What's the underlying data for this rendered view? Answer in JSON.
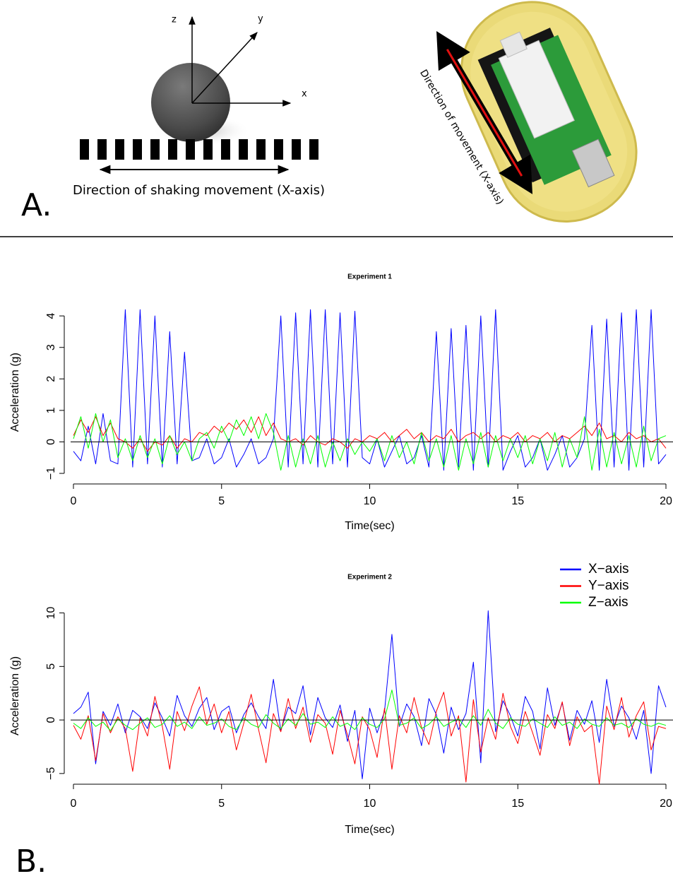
{
  "panel_a": {
    "label": "A.",
    "axis_labels": {
      "z": "z",
      "y": "y",
      "x": "x"
    },
    "shaking_caption": "Direction of shaking movement (X-axis)",
    "device_caption": "Direction of movement (X-axis)"
  },
  "panel_b": {
    "label": "B."
  },
  "chart_data": [
    {
      "type": "line",
      "title": "Experiment 1",
      "x_label": "Time(sec)",
      "y_label": "Acceleration (g)",
      "x": [
        0,
        0.25,
        0.5,
        0.75,
        1,
        1.25,
        1.5,
        1.75,
        2,
        2.25,
        2.5,
        2.75,
        3,
        3.25,
        3.5,
        3.75,
        4,
        4.25,
        4.5,
        4.75,
        5,
        5.25,
        5.5,
        5.75,
        6,
        6.25,
        6.5,
        6.75,
        7,
        7.25,
        7.5,
        7.75,
        8,
        8.25,
        8.5,
        8.75,
        9,
        9.25,
        9.5,
        9.75,
        10,
        10.25,
        10.5,
        10.75,
        11,
        11.25,
        11.5,
        11.75,
        12,
        12.25,
        12.5,
        12.75,
        13,
        13.25,
        13.5,
        13.75,
        14,
        14.25,
        14.5,
        14.75,
        15,
        15.25,
        15.5,
        15.75,
        16,
        16.25,
        16.5,
        16.75,
        17,
        17.25,
        17.5,
        17.75,
        18,
        18.25,
        18.5,
        18.75,
        19,
        19.25,
        19.5,
        19.75,
        20
      ],
      "series": [
        {
          "color": "#0000ff",
          "values": [
            -0.3,
            -0.6,
            0.5,
            -0.7,
            0.9,
            -0.6,
            -0.7,
            4.2,
            -0.8,
            4.2,
            -0.7,
            4.0,
            -0.8,
            3.5,
            -0.7,
            2.85,
            -0.6,
            -0.5,
            0.1,
            -0.7,
            -0.5,
            0.1,
            -0.8,
            -0.4,
            0.1,
            -0.7,
            -0.5,
            0.1,
            4.0,
            -0.8,
            4.1,
            -0.7,
            4.2,
            -0.8,
            4.2,
            -0.7,
            4.1,
            -0.8,
            4.15,
            -0.5,
            -0.7,
            0.1,
            -0.8,
            -0.3,
            0.2,
            -0.7,
            -0.5,
            0.2,
            -0.8,
            3.5,
            -0.9,
            3.6,
            -0.8,
            3.7,
            -0.9,
            4.0,
            -0.8,
            4.2,
            -0.9,
            -0.3,
            0.2,
            -0.8,
            -0.5,
            0.1,
            -0.9,
            -0.4,
            0.2,
            -0.8,
            -0.5,
            0.1,
            3.7,
            -0.9,
            3.9,
            -0.8,
            4.1,
            -0.9,
            4.2,
            -0.8,
            4.2,
            -0.7,
            -0.4
          ]
        },
        {
          "color": "#ff0000",
          "values": [
            0.2,
            0.7,
            0.3,
            0.8,
            0.2,
            0.6,
            0.1,
            0.0,
            -0.2,
            0.1,
            -0.3,
            0.0,
            -0.1,
            0.2,
            -0.2,
            0.1,
            0.0,
            0.3,
            0.2,
            0.5,
            0.3,
            0.6,
            0.4,
            0.7,
            0.3,
            0.8,
            0.2,
            0.6,
            0.1,
            0.0,
            0.1,
            -0.1,
            0.2,
            0.0,
            -0.1,
            0.1,
            0.0,
            -0.2,
            0.1,
            0.0,
            0.2,
            0.1,
            0.3,
            0.0,
            0.2,
            0.4,
            0.1,
            0.3,
            0.0,
            0.2,
            0.1,
            0.4,
            0.0,
            0.2,
            0.3,
            0.1,
            0.3,
            0.0,
            0.2,
            0.1,
            0.3,
            0.0,
            0.2,
            0.1,
            0.3,
            0.0,
            0.2,
            0.1,
            0.3,
            0.5,
            0.2,
            0.6,
            0.1,
            0.2,
            0.0,
            0.3,
            0.1,
            0.2,
            0.0,
            0.1,
            -0.2
          ]
        },
        {
          "color": "#00ff00",
          "values": [
            0.1,
            0.8,
            -0.2,
            0.9,
            0.0,
            0.7,
            -0.5,
            0.1,
            -0.6,
            0.2,
            -0.5,
            0.1,
            -0.7,
            0.2,
            -0.4,
            0.0,
            -0.6,
            0.1,
            0.3,
            -0.2,
            0.5,
            0.0,
            0.7,
            0.2,
            0.8,
            0.1,
            0.9,
            0.3,
            -0.9,
            0.2,
            -0.8,
            0.1,
            -0.7,
            0.2,
            -0.8,
            0.0,
            -0.6,
            0.1,
            -0.4,
            0.0,
            -0.3,
            0.1,
            -0.6,
            0.2,
            -0.5,
            0.0,
            -0.7,
            0.3,
            -0.6,
            0.1,
            -0.8,
            0.2,
            -0.9,
            0.1,
            -0.7,
            0.3,
            -0.8,
            0.2,
            -0.6,
            0.1,
            -0.5,
            0.2,
            -0.7,
            0.1,
            -0.6,
            0.3,
            -0.8,
            0.1,
            -0.5,
            0.8,
            -0.9,
            0.4,
            -0.8,
            0.3,
            -0.7,
            0.2,
            -0.8,
            0.5,
            -0.6,
            0.1,
            0.2
          ]
        }
      ],
      "xlim": [
        0,
        20
      ],
      "ylim": [
        -1.1,
        4.25
      ],
      "xticks": [
        0,
        5,
        10,
        15,
        20
      ],
      "yticks": [
        {
          "value": -1,
          "label": "−1"
        },
        0,
        1,
        2,
        3,
        4
      ]
    },
    {
      "type": "line",
      "title": "Experiment 2",
      "x_label": "Time(sec)",
      "y_label": "Acceleration (g)",
      "x": [
        0,
        0.25,
        0.5,
        0.75,
        1,
        1.25,
        1.5,
        1.75,
        2,
        2.25,
        2.5,
        2.75,
        3,
        3.25,
        3.5,
        3.75,
        4,
        4.25,
        4.5,
        4.75,
        5,
        5.25,
        5.5,
        5.75,
        6,
        6.25,
        6.5,
        6.75,
        7,
        7.25,
        7.5,
        7.75,
        8,
        8.25,
        8.5,
        8.75,
        9,
        9.25,
        9.5,
        9.75,
        10,
        10.25,
        10.5,
        10.75,
        11,
        11.25,
        11.5,
        11.75,
        12,
        12.25,
        12.5,
        12.75,
        13,
        13.25,
        13.5,
        13.75,
        14,
        14.25,
        14.5,
        14.75,
        15,
        15.25,
        15.5,
        15.75,
        16,
        16.25,
        16.5,
        16.75,
        17,
        17.25,
        17.5,
        17.75,
        18,
        18.25,
        18.5,
        18.75,
        19,
        19.25,
        19.5,
        19.75,
        20
      ],
      "series": [
        {
          "name": "X−axis",
          "color": "#0000ff",
          "values": [
            0.6,
            1.2,
            2.6,
            -4.1,
            0.8,
            -0.5,
            1.5,
            -1.2,
            0.9,
            0.3,
            -0.8,
            1.6,
            0.2,
            -1.5,
            2.3,
            0.4,
            -0.6,
            1.1,
            2.1,
            -0.9,
            0.8,
            1.3,
            -1.2,
            0.5,
            1.6,
            0.3,
            -0.8,
            3.8,
            -1.0,
            1.2,
            0.6,
            3.2,
            -1.4,
            2.1,
            0.2,
            -0.7,
            1.4,
            -2.0,
            0.9,
            -5.5,
            1.1,
            -1.2,
            0.8,
            8.0,
            -0.6,
            1.5,
            0.3,
            -2.4,
            2.0,
            0.5,
            -3.1,
            1.2,
            -0.9,
            0.6,
            5.4,
            -4.0,
            10.2,
            -1.1,
            1.8,
            0.4,
            -1.5,
            2.2,
            0.8,
            -2.7,
            3.0,
            -0.5,
            1.6,
            -1.9,
            0.9,
            -0.4,
            1.8,
            -2.1,
            3.8,
            -0.6,
            1.3,
            0.2,
            -1.8,
            0.9,
            -5.0,
            3.2,
            1.2
          ]
        },
        {
          "name": "Y−axis",
          "color": "#ff0000",
          "values": [
            -0.5,
            -1.8,
            0.4,
            -3.8,
            0.6,
            -1.2,
            0.3,
            -0.8,
            -4.8,
            0.2,
            -1.5,
            2.2,
            -0.6,
            -4.6,
            0.8,
            -1.0,
            1.3,
            3.1,
            -0.4,
            1.5,
            -1.2,
            0.8,
            -2.8,
            -0.3,
            2.4,
            -0.9,
            -4.0,
            0.6,
            -1.1,
            2.0,
            -0.8,
            1.2,
            -2.1,
            0.5,
            -0.3,
            -3.2,
            0.9,
            -1.4,
            -4.1,
            0.3,
            -0.9,
            -3.5,
            1.1,
            -4.6,
            0.4,
            -1.2,
            2.1,
            -0.7,
            -2.3,
            0.8,
            2.6,
            -1.5,
            0.4,
            -5.8,
            1.9,
            -3.0,
            0.2,
            -1.8,
            2.5,
            -0.6,
            -2.2,
            0.8,
            -1.2,
            -3.3,
            0.5,
            -0.8,
            1.7,
            -2.4,
            0.3,
            -1.1,
            -0.5,
            -6.0,
            1.3,
            -0.9,
            2.1,
            -1.6,
            0.4,
            1.7,
            -2.8,
            -0.6,
            -0.8
          ]
        },
        {
          "name": "Z−axis",
          "color": "#00ff00",
          "values": [
            -0.3,
            -0.8,
            0.2,
            -0.6,
            -0.2,
            -1.0,
            0.1,
            -0.5,
            -0.9,
            -0.3,
            0.2,
            -0.7,
            -0.4,
            0.4,
            -0.6,
            -0.2,
            -0.8,
            0.3,
            -0.5,
            -0.3,
            0.1,
            -0.6,
            -0.9,
            0.2,
            -0.4,
            -0.7,
            0.5,
            -0.3,
            -0.8,
            0.1,
            -0.5,
            0.6,
            -0.4,
            -0.2,
            -0.7,
            0.3,
            -0.6,
            -0.3,
            -0.9,
            0.2,
            -0.4,
            -0.7,
            0.1,
            2.8,
            -0.5,
            -0.3,
            0.2,
            -0.8,
            -0.4,
            0.3,
            -0.6,
            -0.2,
            0.1,
            -0.7,
            0.4,
            -0.5,
            1.0,
            -0.3,
            -0.8,
            0.2,
            -0.4,
            -0.6,
            0.1,
            -0.3,
            -0.7,
            0.3,
            -0.5,
            -0.2,
            -0.8,
            0.1,
            -0.4,
            -0.6,
            0.2,
            -0.5,
            -0.3,
            -0.7,
            0.1,
            -0.4,
            -0.6,
            -0.3,
            -0.5
          ]
        }
      ],
      "legend": "top-right",
      "xlim": [
        0,
        20
      ],
      "ylim": [
        -6,
        10.5
      ],
      "xticks": [
        0,
        5,
        10,
        15,
        20
      ],
      "yticks": [
        {
          "value": -5,
          "label": "−5"
        },
        0,
        5,
        10
      ]
    }
  ]
}
